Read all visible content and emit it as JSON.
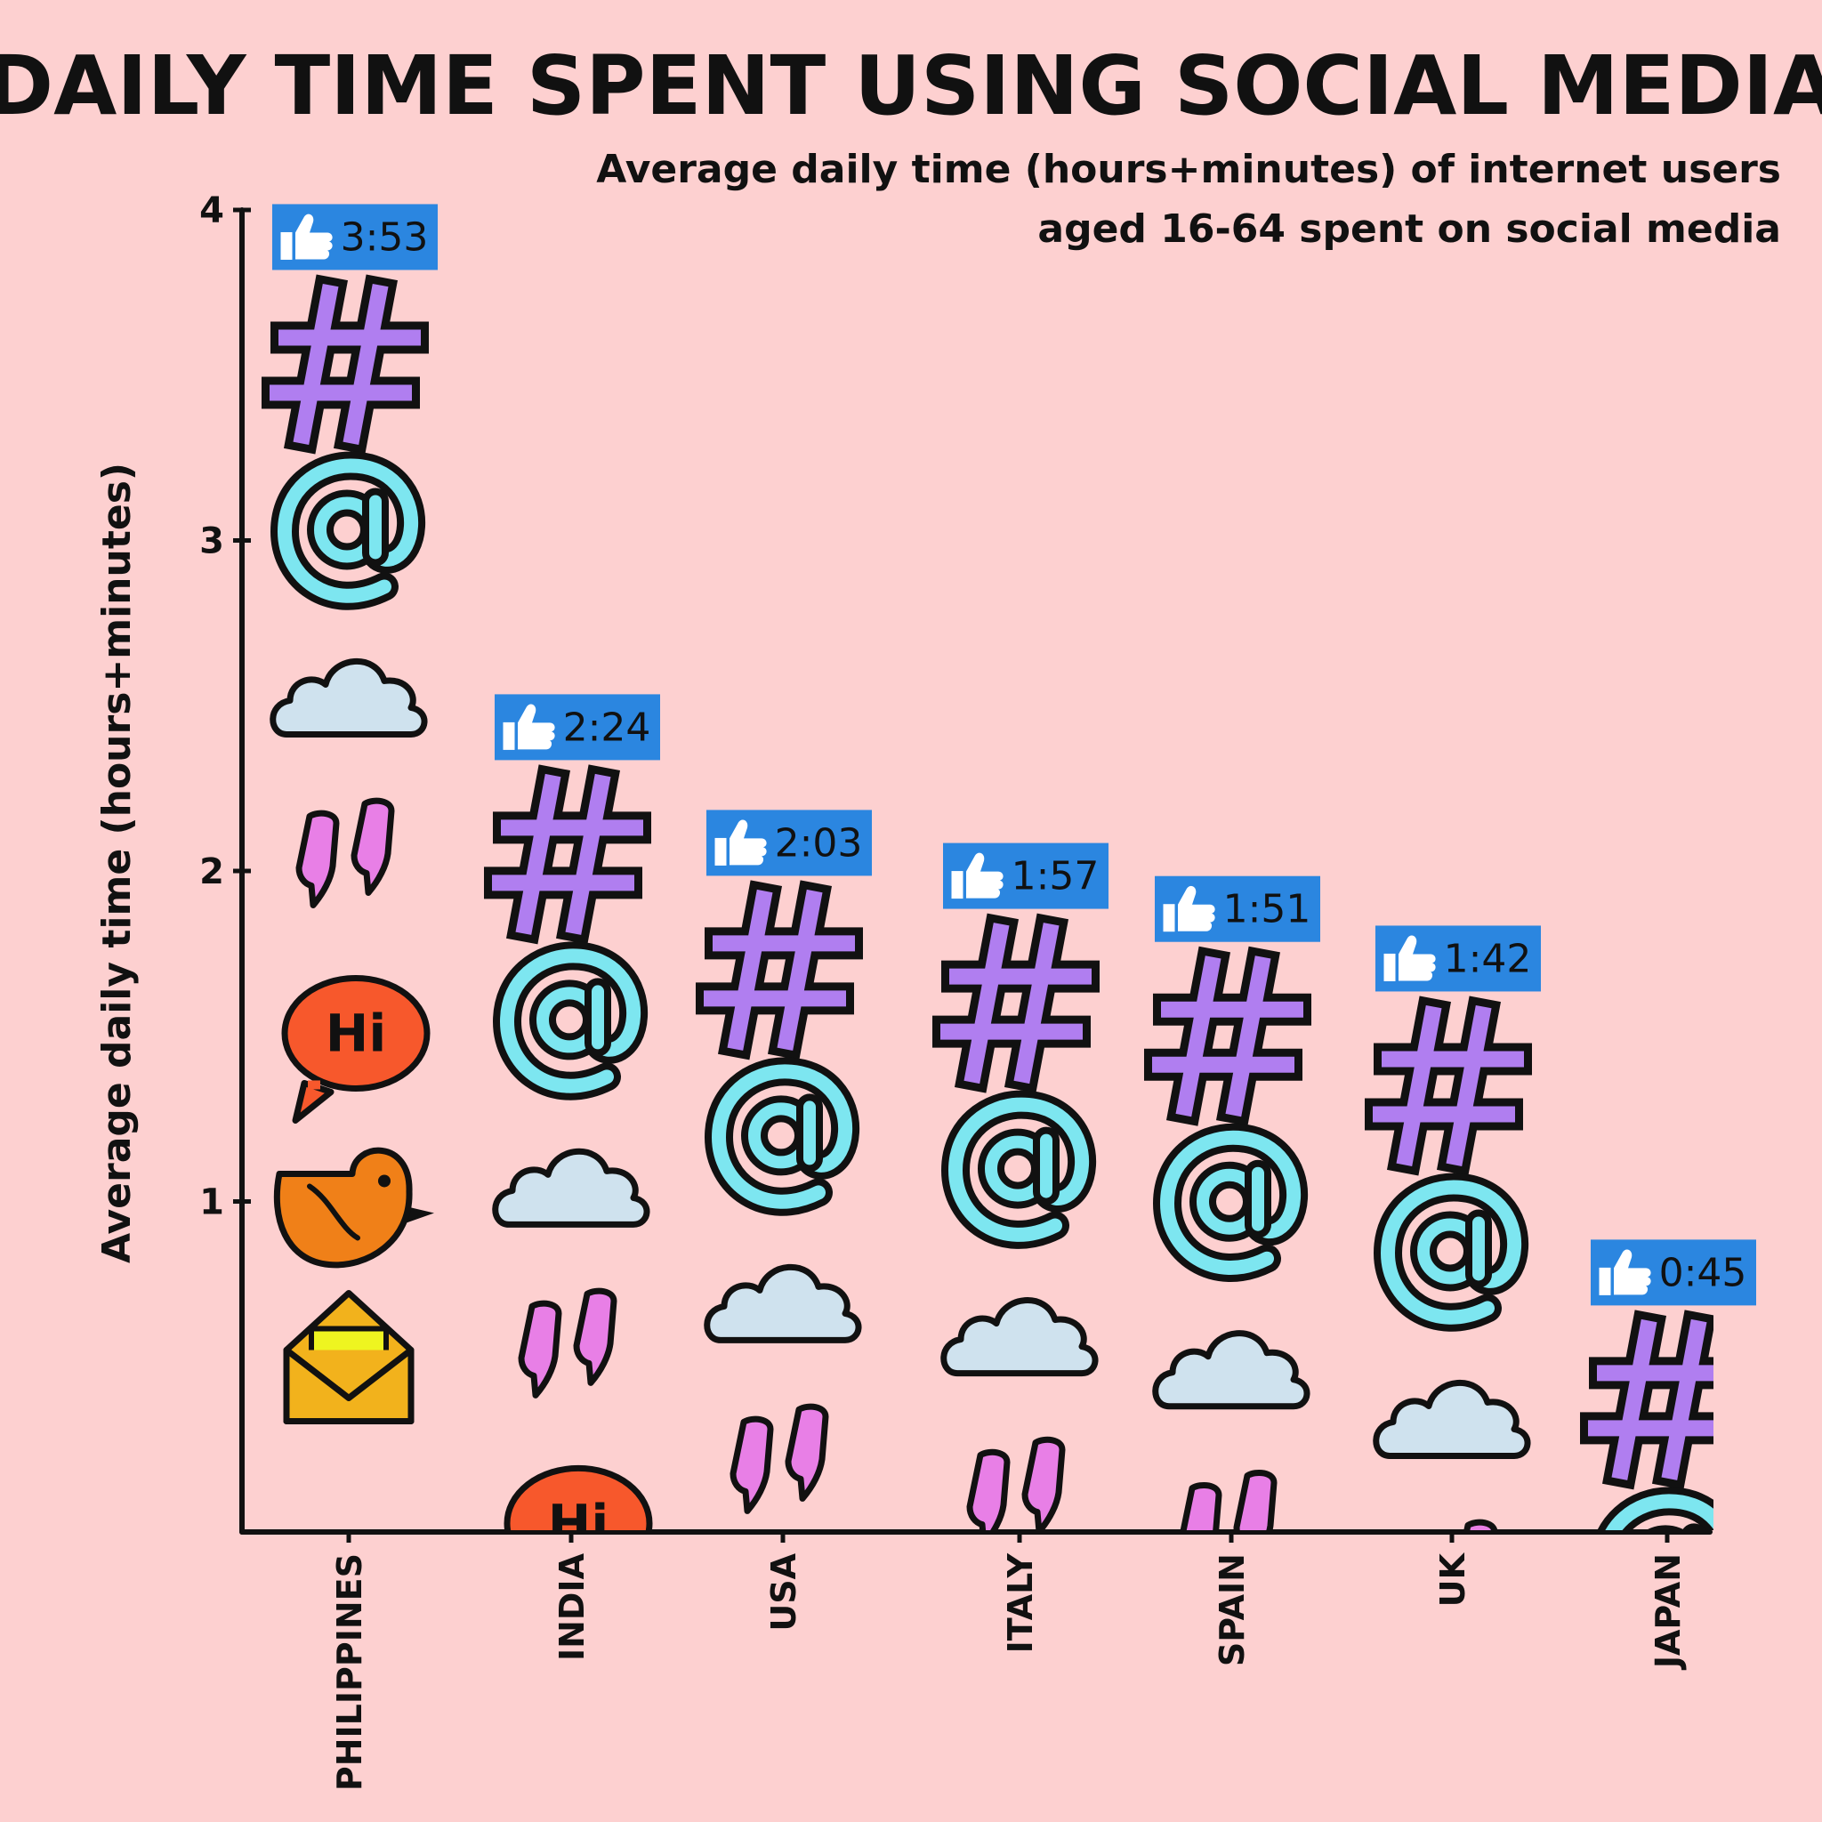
{
  "chart_data": {
    "type": "bar",
    "title": "DAILY TIME SPENT USING SOCIAL MEDIA",
    "subtitle_line1": "Average daily time (hours+minutes) of internet users",
    "subtitle_line2": "aged 16-64 spent on social media",
    "ylabel": "Average daily time (hours+minutes)",
    "xlabel": "",
    "ylim": [
      0,
      4
    ],
    "yticks": [
      "1",
      "2",
      "3",
      "4"
    ],
    "categories": [
      "PHILIPPINES",
      "INDIA",
      "USA",
      "ITALY",
      "SPAIN",
      "UK",
      "JAPAN"
    ],
    "values": [
      3.883,
      2.4,
      2.05,
      1.95,
      1.85,
      1.7,
      0.75
    ],
    "value_labels": [
      "3:53",
      "2:24",
      "2:03",
      "1:57",
      "1:51",
      "1:42",
      "0:45"
    ],
    "grid": false,
    "legend": "none"
  },
  "colors": {
    "background": "#fdd0d0",
    "badge": "#2b86e0",
    "hash": "#b07ef0",
    "at": "#7de6f0",
    "cloud": "#cfe2ee",
    "quote": "#e87fe6",
    "speech": "#f7582c",
    "bird": "#f08018",
    "envelope": "#f2b21c",
    "letter": "#eef520",
    "ink": "#111111"
  },
  "icons": [
    "hash-icon",
    "at-icon",
    "cloud-icon",
    "quote-icon",
    "speech-bubble-icon",
    "bird-icon",
    "envelope-icon"
  ],
  "bubble_text": "Hi"
}
